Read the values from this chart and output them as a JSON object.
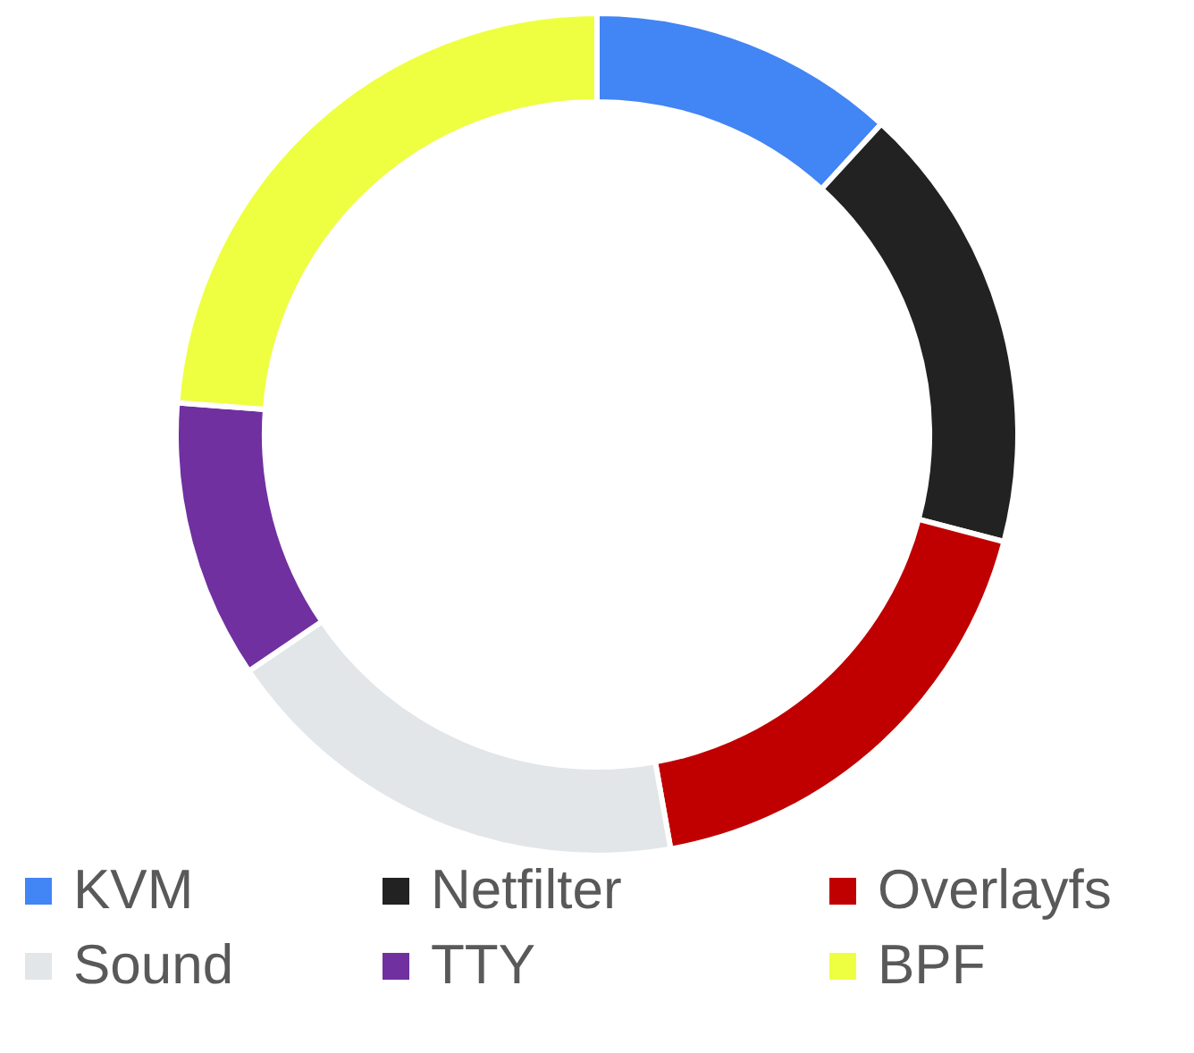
{
  "chart_data": {
    "type": "donut",
    "categories": [
      "KVM",
      "Netfilter",
      "Overlayfs",
      "Sound",
      "TTY",
      "BPF"
    ],
    "values": [
      11.8,
      17.3,
      18.1,
      18.3,
      10.7,
      23.8
    ],
    "colors": [
      "#4285f4",
      "#222222",
      "#c00000",
      "#e2e6e8",
      "#7030a0",
      "#eeff41"
    ],
    "legend": "bottom"
  }
}
